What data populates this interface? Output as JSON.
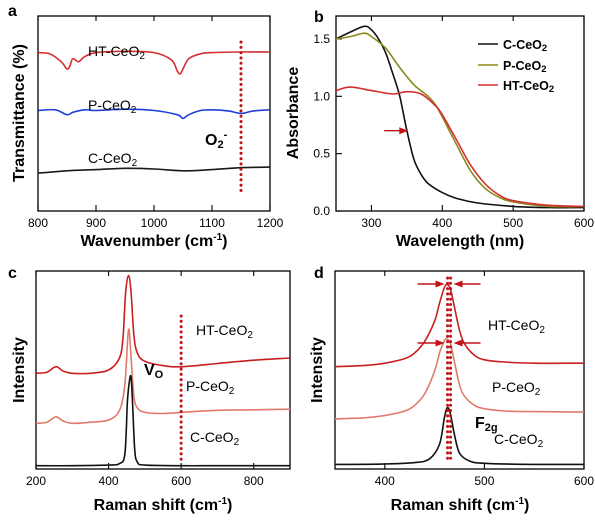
{
  "chart_data": [
    {
      "id": "a",
      "type": "line",
      "panel_label": "a",
      "xlabel": "Wavenumber (cm⁻¹)",
      "ylabel": "Transmittance (%)",
      "xlim": [
        800,
        1200
      ],
      "xticks": [
        800,
        900,
        1000,
        1100,
        1200
      ],
      "y_ticks_shown": false,
      "grid": false,
      "series": [
        {
          "name": "HT-CeO₂",
          "color": "#d32f2f",
          "x": [
            800,
            820,
            840,
            850,
            855,
            860,
            870,
            880,
            900,
            950,
            1000,
            1030,
            1040,
            1045,
            1050,
            1060,
            1080,
            1100,
            1150,
            1200
          ],
          "y": [
            2.6,
            2.58,
            2.45,
            2.33,
            2.38,
            2.5,
            2.45,
            2.53,
            2.6,
            2.62,
            2.6,
            2.48,
            2.3,
            2.25,
            2.33,
            2.5,
            2.58,
            2.6,
            2.61,
            2.61
          ]
        },
        {
          "name": "P-CeO₂",
          "color": "#1e40d8",
          "x": [
            800,
            830,
            850,
            860,
            880,
            900,
            950,
            1000,
            1040,
            1050,
            1060,
            1080,
            1100,
            1130,
            1150,
            1170,
            1200
          ],
          "y": [
            1.65,
            1.66,
            1.58,
            1.62,
            1.66,
            1.65,
            1.67,
            1.65,
            1.58,
            1.52,
            1.58,
            1.65,
            1.66,
            1.64,
            1.6,
            1.64,
            1.66
          ]
        },
        {
          "name": "C-CeO₂",
          "color": "#1a1a1a",
          "x": [
            800,
            850,
            900,
            950,
            1000,
            1050,
            1100,
            1150,
            1200
          ],
          "y": [
            0.62,
            0.66,
            0.68,
            0.7,
            0.69,
            0.66,
            0.68,
            0.71,
            0.72
          ]
        }
      ],
      "annotations": [
        {
          "text": "O₂⁻",
          "kind": "dotted-vline",
          "x": 1150
        }
      ]
    },
    {
      "id": "b",
      "type": "line",
      "panel_label": "b",
      "xlabel": "Wavelength (nm)",
      "ylabel": "Absorbance",
      "xlim": [
        250,
        600
      ],
      "ylim": [
        0,
        1.7
      ],
      "xticks": [
        300,
        400,
        500,
        600
      ],
      "yticks": [
        0.0,
        0.5,
        1.0,
        1.5
      ],
      "ytick_labels": [
        "0.0",
        "0.5",
        "1.0",
        "1.5"
      ],
      "grid": false,
      "legend_position": "top-right",
      "series": [
        {
          "name": "C-CeO₂",
          "color": "#111111",
          "x": [
            250,
            270,
            290,
            300,
            310,
            320,
            330,
            340,
            350,
            360,
            370,
            380,
            400,
            420,
            450,
            500,
            550,
            600
          ],
          "y": [
            1.5,
            1.56,
            1.61,
            1.58,
            1.5,
            1.38,
            1.2,
            1.0,
            0.7,
            0.45,
            0.32,
            0.24,
            0.16,
            0.11,
            0.07,
            0.04,
            0.03,
            0.03
          ]
        },
        {
          "name": "P-CeO₂",
          "color": "#8a8a1a",
          "x": [
            250,
            270,
            290,
            300,
            320,
            340,
            360,
            380,
            390,
            400,
            420,
            440,
            460,
            480,
            500,
            550,
            600
          ],
          "y": [
            1.5,
            1.52,
            1.55,
            1.52,
            1.42,
            1.25,
            1.1,
            1.0,
            0.93,
            0.82,
            0.58,
            0.35,
            0.2,
            0.12,
            0.08,
            0.04,
            0.04
          ]
        },
        {
          "name": "HT-CeO₂",
          "color": "#d32f2f",
          "x": [
            250,
            270,
            300,
            330,
            350,
            370,
            390,
            400,
            420,
            440,
            460,
            480,
            500,
            550,
            600
          ],
          "y": [
            1.05,
            1.08,
            1.05,
            1.02,
            1.04,
            1.02,
            0.92,
            0.84,
            0.62,
            0.4,
            0.24,
            0.14,
            0.09,
            0.05,
            0.04
          ]
        }
      ],
      "annotations": [
        {
          "kind": "arrow",
          "direction": "right",
          "x": [
            318,
            352
          ],
          "y": 0.7
        }
      ]
    },
    {
      "id": "c",
      "type": "line",
      "panel_label": "c",
      "xlabel": "Raman shift (cm⁻¹)",
      "ylabel": "Intensity",
      "xlim": [
        200,
        900
      ],
      "xticks": [
        200,
        400,
        600,
        800
      ],
      "y_ticks_shown": false,
      "grid": false,
      "series": [
        {
          "name": "HT-CeO₂",
          "color": "#c82020",
          "x": [
            200,
            230,
            255,
            275,
            300,
            350,
            400,
            430,
            440,
            447,
            455,
            462,
            470,
            480,
            500,
            550,
            600,
            700,
            800,
            900
          ],
          "y": [
            4.3,
            4.35,
            4.6,
            4.4,
            4.3,
            4.3,
            4.45,
            5.0,
            6.0,
            8.0,
            8.8,
            8.0,
            6.0,
            5.2,
            4.85,
            4.65,
            4.6,
            4.75,
            4.9,
            5.0
          ]
        },
        {
          "name": "P-CeO₂",
          "color": "#e07a6a",
          "x": [
            200,
            230,
            255,
            275,
            300,
            350,
            400,
            430,
            445,
            455,
            462,
            470,
            480,
            500,
            550,
            600,
            700,
            800,
            900
          ],
          "y": [
            2.0,
            2.05,
            2.3,
            2.1,
            2.0,
            2.05,
            2.15,
            2.6,
            3.8,
            6.3,
            5.0,
            3.2,
            2.7,
            2.5,
            2.45,
            2.5,
            2.6,
            2.62,
            2.65
          ]
        },
        {
          "name": "C-CeO₂",
          "color": "#111111",
          "x": [
            200,
            300,
            400,
            430,
            445,
            452,
            458,
            462,
            466,
            472,
            480,
            500,
            600,
            700,
            800,
            900
          ],
          "y": [
            0.05,
            0.05,
            0.08,
            0.15,
            0.6,
            3.0,
            4.0,
            4.1,
            3.0,
            0.8,
            0.2,
            0.08,
            0.05,
            0.05,
            0.05,
            0.05
          ]
        }
      ],
      "annotations": [
        {
          "text": "Vo",
          "kind": "dotted-vline",
          "x": 600
        }
      ]
    },
    {
      "id": "d",
      "type": "line",
      "panel_label": "d",
      "xlabel": "Raman shift (cm⁻¹)",
      "ylabel": "Intensity",
      "xlim": [
        350,
        600
      ],
      "xticks": [
        400,
        500,
        600
      ],
      "y_ticks_shown": false,
      "grid": false,
      "series": [
        {
          "name": "HT-CeO₂",
          "color": "#c82020",
          "x": [
            350,
            380,
            400,
            420,
            430,
            440,
            450,
            455,
            460,
            463,
            466,
            470,
            475,
            480,
            490,
            500,
            520,
            550,
            600
          ],
          "y": [
            4.4,
            4.45,
            4.55,
            4.75,
            5.0,
            5.5,
            6.4,
            7.2,
            7.9,
            8.0,
            7.8,
            7.0,
            6.0,
            5.4,
            4.9,
            4.7,
            4.6,
            4.55,
            4.55
          ]
        },
        {
          "name": "P-CeO₂",
          "color": "#e07a6a",
          "x": [
            350,
            380,
            400,
            420,
            430,
            440,
            450,
            455,
            460,
            463,
            466,
            470,
            475,
            480,
            490,
            500,
            520,
            550,
            600
          ],
          "y": [
            2.1,
            2.15,
            2.25,
            2.45,
            2.7,
            3.2,
            4.2,
            5.0,
            5.55,
            5.6,
            5.4,
            4.6,
            3.6,
            3.1,
            2.7,
            2.55,
            2.45,
            2.42,
            2.4
          ]
        },
        {
          "name": "C-CeO₂",
          "color": "#111111",
          "x": [
            350,
            400,
            430,
            445,
            455,
            460,
            463,
            466,
            470,
            475,
            485,
            500,
            550,
            600
          ],
          "y": [
            0.1,
            0.12,
            0.18,
            0.35,
            1.0,
            2.2,
            2.6,
            2.3,
            1.4,
            0.6,
            0.25,
            0.15,
            0.1,
            0.1
          ]
        }
      ],
      "annotations": [
        {
          "text": "F2g",
          "kind": "label"
        },
        {
          "kind": "dotted-vline",
          "x": 463
        },
        {
          "kind": "dotted-vline",
          "x": 466
        },
        {
          "kind": "arrow-pair"
        }
      ]
    }
  ],
  "labels": {
    "a": {
      "panel": "a",
      "series": [
        {
          "base": "HT-CeO",
          "sub": "2"
        },
        {
          "base": "P-CeO",
          "sub": "2"
        },
        {
          "base": "C-CeO",
          "sub": "2"
        }
      ],
      "annotation": {
        "base": "O",
        "sub": "2",
        "sup": "-"
      },
      "xlabel": {
        "base": "Wavenumber (cm",
        "sup": "-1",
        "tail": ")"
      },
      "ylabel": "Transmittance (%)",
      "xtick_labels": [
        "800",
        "900",
        "1000",
        "1100",
        "1200"
      ]
    },
    "b": {
      "panel": "b",
      "legend": [
        {
          "base": "C-CeO",
          "sub": "2"
        },
        {
          "base": "P-CeO",
          "sub": "2"
        },
        {
          "base": "HT-CeO",
          "sub": "2"
        }
      ],
      "xlabel": "Wavelength (nm)",
      "ylabel": "Absorbance",
      "xtick_labels": [
        "300",
        "400",
        "500",
        "600"
      ],
      "ytick_labels": [
        "0.0",
        "0.5",
        "1.0",
        "1.5"
      ]
    },
    "c": {
      "panel": "c",
      "series": [
        {
          "base": "HT-CeO",
          "sub": "2"
        },
        {
          "base": "P-CeO",
          "sub": "2"
        },
        {
          "base": "C-CeO",
          "sub": "2"
        }
      ],
      "annotation": {
        "base": "V",
        "sub": "O"
      },
      "xlabel": {
        "base": "Raman shift (cm",
        "sup": "-1",
        "tail": ")"
      },
      "ylabel": "Intensity",
      "xtick_labels": [
        "200",
        "400",
        "600",
        "800"
      ]
    },
    "d": {
      "panel": "d",
      "series": [
        {
          "base": "HT-CeO",
          "sub": "2"
        },
        {
          "base": "P-CeO",
          "sub": "2"
        },
        {
          "base": "C-CeO",
          "sub": "2"
        }
      ],
      "annotation": {
        "base": "F",
        "sub": "2g"
      },
      "xlabel": {
        "base": "Raman shift (cm",
        "sup": "-1",
        "tail": ")"
      },
      "ylabel": "Intensity",
      "xtick_labels": [
        "400",
        "500",
        "600"
      ]
    }
  }
}
